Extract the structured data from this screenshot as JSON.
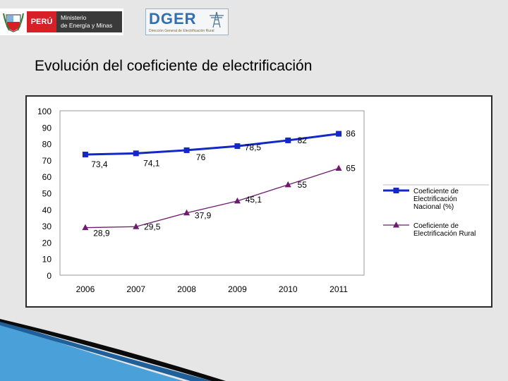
{
  "header": {
    "country": "PERÚ",
    "ministry_line1": "Ministerio",
    "ministry_line2": "de Energía y Minas",
    "dger": "DGER",
    "dger_subtitle": "Dirección General de Electrificación Rural"
  },
  "title": "Evolución del coeficiente de electrificación",
  "colors": {
    "national": "#1428c8",
    "rural": "#6e1a6e",
    "axis": "#999999"
  },
  "chart_data": {
    "type": "line",
    "title": "Evolución del coeficiente de electrificación",
    "categories": [
      "2006",
      "2007",
      "2008",
      "2009",
      "2010",
      "2011"
    ],
    "ylim": [
      0,
      100
    ],
    "yticks": [
      "0",
      "10",
      "20",
      "30",
      "40",
      "50",
      "60",
      "70",
      "80",
      "90",
      "100"
    ],
    "series": [
      {
        "name": "Coeficiente de Electrificación Nacional (%)",
        "legend_lines": [
          "Coeficiente de",
          "Electrificación",
          "Nacional (%)"
        ],
        "values": [
          73.4,
          74.1,
          76,
          78.5,
          82,
          86
        ],
        "labels": [
          "73,4",
          "74,1",
          "76",
          "78,5",
          "82",
          "86"
        ],
        "marker": "square"
      },
      {
        "name": "Coeficiente de Electrificación Rural",
        "legend_lines": [
          "Coeficiente de",
          "Electrificación Rural"
        ],
        "values": [
          28.9,
          29.5,
          37.9,
          45.1,
          55,
          65
        ],
        "labels": [
          "28,9",
          "29,5",
          "37,9",
          "45,1",
          "55",
          "65"
        ],
        "marker": "triangle"
      }
    ]
  }
}
